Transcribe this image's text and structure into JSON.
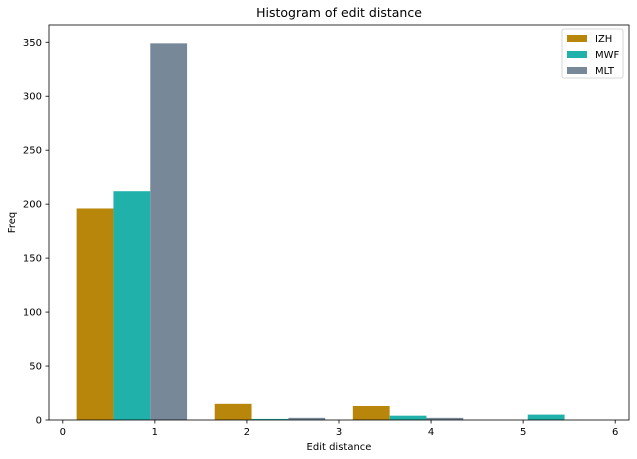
{
  "chart_data": {
    "type": "bar",
    "title": "Histogram of edit distance",
    "xlabel": "Edit distance",
    "ylabel": "Freq",
    "xlim": [
      -0.15,
      6.15
    ],
    "ylim": [
      0,
      366
    ],
    "xticks": [
      0,
      1,
      2,
      3,
      4,
      5,
      6
    ],
    "yticks": [
      0,
      50,
      100,
      150,
      200,
      250,
      300,
      350
    ],
    "bin_edges": [
      0.15,
      1.65,
      3.15,
      4.65,
      6.0
    ],
    "bar_width": 0.4,
    "legend_position": "top-right",
    "grid": false,
    "series": [
      {
        "name": "IZH",
        "color": "#b8860b",
        "x": [
          0.15,
          1.65,
          3.15,
          4.65
        ],
        "values": [
          196,
          15,
          13,
          0
        ]
      },
      {
        "name": "MWF",
        "color": "#20b2aa",
        "x": [
          0.55,
          2.05,
          3.55,
          5.05
        ],
        "values": [
          212,
          1,
          4,
          5
        ]
      },
      {
        "name": "MLT",
        "color": "#778899",
        "x": [
          0.95,
          2.45,
          3.95,
          5.45
        ],
        "values": [
          349,
          2,
          2,
          0
        ]
      }
    ]
  }
}
